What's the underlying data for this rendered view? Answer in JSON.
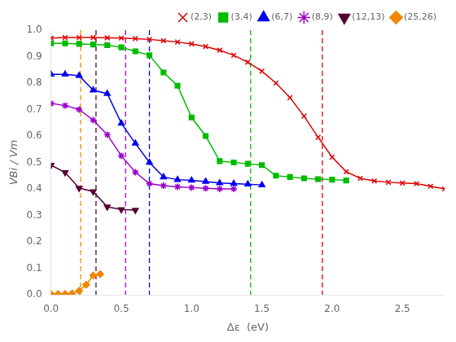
{
  "chart_data": {
    "type": "line",
    "xlabel": "Δε  (eV)",
    "ylabel": "VBi / Vm",
    "xlim": [
      0.0,
      2.8
    ],
    "ylim": [
      0.0,
      1.0
    ],
    "xticks": [
      {
        "value": 0.0,
        "label": "0.0"
      },
      0.5,
      {
        "value": 1.0,
        "label": "1.0"
      },
      1.5,
      {
        "value": 2.0,
        "label": "2.0"
      },
      2.5
    ],
    "yticks": [
      {
        "value": 0.0,
        "label": "0.0"
      },
      0.1,
      0.2,
      0.3,
      0.4,
      0.5,
      0.6,
      0.7,
      0.8,
      0.9,
      {
        "value": 1.0,
        "label": "1.0"
      }
    ],
    "grid": false,
    "legend": "upper right",
    "series": [
      {
        "name": "(2,3)",
        "color": "#dd0000",
        "marker": "x",
        "vline_x": 1.93,
        "x": [
          0.0,
          0.1,
          0.2,
          0.3,
          0.4,
          0.5,
          0.6,
          0.7,
          0.8,
          0.9,
          1.0,
          1.1,
          1.2,
          1.3,
          1.4,
          1.5,
          1.6,
          1.7,
          1.8,
          1.9,
          2.0,
          2.1,
          2.2,
          2.3,
          2.4,
          2.5,
          2.6,
          2.7,
          2.8
        ],
        "values": [
          0.97,
          0.972,
          0.972,
          0.972,
          0.971,
          0.97,
          0.968,
          0.965,
          0.96,
          0.955,
          0.948,
          0.938,
          0.924,
          0.905,
          0.879,
          0.845,
          0.8,
          0.745,
          0.675,
          0.595,
          0.52,
          0.465,
          0.44,
          0.43,
          0.425,
          0.422,
          0.42,
          0.41,
          0.4
        ]
      },
      {
        "name": "(3,4)",
        "color": "#00bb00",
        "marker": "square",
        "vline_x": 1.42,
        "x": [
          0.0,
          0.1,
          0.2,
          0.3,
          0.4,
          0.5,
          0.6,
          0.7,
          0.8,
          0.9,
          1.0,
          1.1,
          1.2,
          1.3,
          1.4,
          1.5,
          1.6,
          1.7,
          1.8,
          1.9,
          2.0,
          2.1
        ],
        "values": [
          0.95,
          0.95,
          0.948,
          0.946,
          0.943,
          0.935,
          0.92,
          0.905,
          0.84,
          0.79,
          0.67,
          0.6,
          0.505,
          0.5,
          0.495,
          0.49,
          0.45,
          0.445,
          0.44,
          0.437,
          0.435,
          0.432
        ]
      },
      {
        "name": "(6,7)",
        "color": "#0000ee",
        "marker": "triangle-up",
        "vline_x": 0.7,
        "x": [
          0.0,
          0.1,
          0.2,
          0.3,
          0.4,
          0.5,
          0.6,
          0.7,
          0.8,
          0.9,
          1.0,
          1.1,
          1.2,
          1.3,
          1.4,
          1.5
        ],
        "values": [
          0.833,
          0.833,
          0.828,
          0.773,
          0.76,
          0.648,
          0.572,
          0.5,
          0.445,
          0.435,
          0.432,
          0.428,
          0.422,
          0.42,
          0.418,
          0.415
        ]
      },
      {
        "name": "(8,9)",
        "color": "#9900cc",
        "marker": "star",
        "vline_x": 0.53,
        "x": [
          0.0,
          0.1,
          0.2,
          0.3,
          0.4,
          0.5,
          0.6,
          0.7,
          0.8,
          0.9,
          1.0,
          1.1,
          1.2,
          1.3
        ],
        "values": [
          0.723,
          0.715,
          0.7,
          0.66,
          0.605,
          0.525,
          0.463,
          0.42,
          0.412,
          0.408,
          0.405,
          0.402,
          0.4,
          0.4
        ]
      },
      {
        "name": "(12,13)",
        "color": "#550033",
        "marker": "triangle-down",
        "vline_x": 0.32,
        "x": [
          0.0,
          0.1,
          0.2,
          0.3,
          0.4,
          0.5,
          0.6
        ],
        "values": [
          0.49,
          0.462,
          0.403,
          0.39,
          0.332,
          0.322,
          0.32
        ]
      },
      {
        "name": "(25,26)",
        "color": "#ee8800",
        "marker": "diamond",
        "vline_x": 0.21,
        "x": [
          0.0,
          0.05,
          0.1,
          0.15,
          0.2,
          0.25,
          0.3,
          0.35
        ],
        "values": [
          0.003,
          0.003,
          0.003,
          0.005,
          0.015,
          0.038,
          0.073,
          0.078
        ]
      }
    ]
  }
}
